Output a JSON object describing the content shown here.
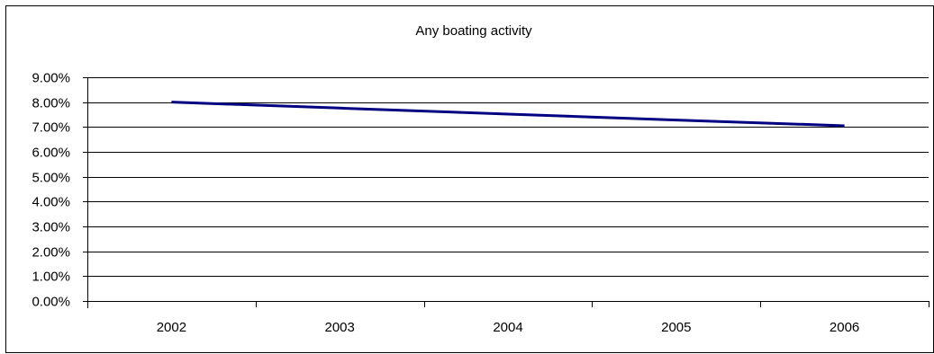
{
  "chart_data": {
    "type": "line",
    "title": "Any boating activity",
    "xlabel": "",
    "ylabel": "",
    "categories": [
      "2002",
      "2003",
      "2004",
      "2005",
      "2006"
    ],
    "series": [
      {
        "values": [
          0.08,
          0.0776,
          0.0752,
          0.0728,
          0.0705
        ],
        "color": "#000080"
      }
    ],
    "ylim": [
      0,
      0.09
    ],
    "y_ticks": [
      0,
      0.01,
      0.02,
      0.03,
      0.04,
      0.05,
      0.06,
      0.07,
      0.08,
      0.09
    ],
    "y_tick_labels": [
      "0.00%",
      "1.00%",
      "2.00%",
      "3.00%",
      "4.00%",
      "5.00%",
      "6.00%",
      "7.00%",
      "8.00%",
      "9.00%"
    ],
    "grid": true,
    "legend": false
  }
}
